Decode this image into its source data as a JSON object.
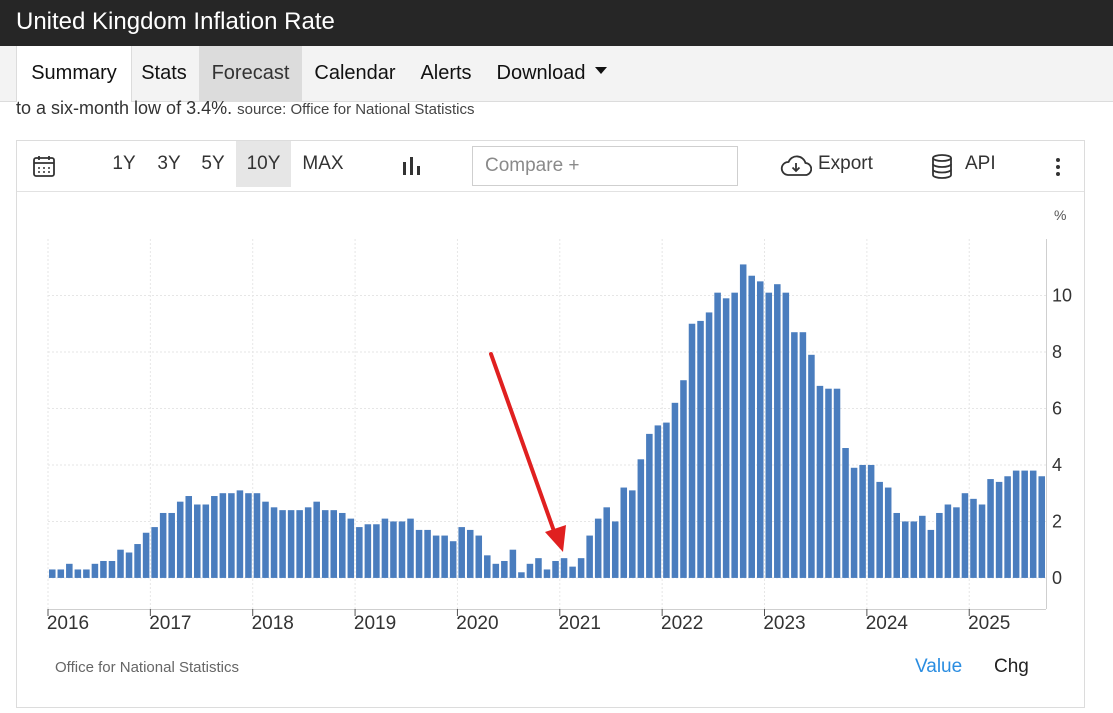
{
  "header": {
    "title": "United Kingdom Inflation Rate"
  },
  "tabs": [
    {
      "label": "Summary"
    },
    {
      "label": "Stats"
    },
    {
      "label": "Forecast"
    },
    {
      "label": "Calendar"
    },
    {
      "label": "Alerts"
    },
    {
      "label": "Download"
    }
  ],
  "description": {
    "text": "to a six-month low of 3.4%.",
    "source_text": "source: Office for National Statistics"
  },
  "toolbar": {
    "ranges": [
      "1Y",
      "3Y",
      "5Y",
      "10Y",
      "MAX"
    ],
    "selected_range": "10Y",
    "compare_placeholder": "Compare +",
    "export_label": "Export",
    "api_label": "API",
    "icons": [
      "calendar-icon",
      "bar-chart-icon",
      "cloud-download-icon",
      "database-icon",
      "more-vert-icon"
    ]
  },
  "footer": {
    "source": "Office for National Statistics",
    "value_label": "Value",
    "chg_label": "Chg"
  },
  "colors": {
    "bar": "#4a7dbe",
    "accent": "#2a8de1",
    "header_bg": "#262626",
    "arrow": "#e02020"
  },
  "chart_data": {
    "type": "bar",
    "ylabel": "%",
    "ylim": [
      -1.1,
      12.0
    ],
    "y_ticks": [
      0,
      2,
      4,
      6,
      8,
      10
    ],
    "x_ticks": [
      "2016",
      "2017",
      "2018",
      "2019",
      "2020",
      "2021",
      "2022",
      "2023",
      "2024",
      "2025"
    ],
    "start": "2016-01",
    "grid": true,
    "values": [
      0.3,
      0.3,
      0.5,
      0.3,
      0.3,
      0.5,
      0.6,
      0.6,
      1.0,
      0.9,
      1.2,
      1.6,
      1.8,
      2.3,
      2.3,
      2.7,
      2.9,
      2.6,
      2.6,
      2.9,
      3.0,
      3.0,
      3.1,
      3.0,
      3.0,
      2.7,
      2.5,
      2.4,
      2.4,
      2.4,
      2.5,
      2.7,
      2.4,
      2.4,
      2.3,
      2.1,
      1.8,
      1.9,
      1.9,
      2.1,
      2.0,
      2.0,
      2.1,
      1.7,
      1.7,
      1.5,
      1.5,
      1.3,
      1.8,
      1.7,
      1.5,
      0.8,
      0.5,
      0.6,
      1.0,
      0.2,
      0.5,
      0.7,
      0.3,
      0.6,
      0.7,
      0.4,
      0.7,
      1.5,
      2.1,
      2.5,
      2.0,
      3.2,
      3.1,
      4.2,
      5.1,
      5.4,
      5.5,
      6.2,
      7.0,
      9.0,
      9.1,
      9.4,
      10.1,
      9.9,
      10.1,
      11.1,
      10.7,
      10.5,
      10.1,
      10.4,
      10.1,
      8.7,
      8.7,
      7.9,
      6.8,
      6.7,
      6.7,
      4.6,
      3.9,
      4.0,
      4.0,
      3.4,
      3.2,
      2.3,
      2.0,
      2.0,
      2.2,
      1.7,
      2.3,
      2.6,
      2.5,
      3.0,
      2.8,
      2.6,
      3.5,
      3.4,
      3.6,
      3.8,
      3.8,
      3.8,
      3.6
    ]
  }
}
